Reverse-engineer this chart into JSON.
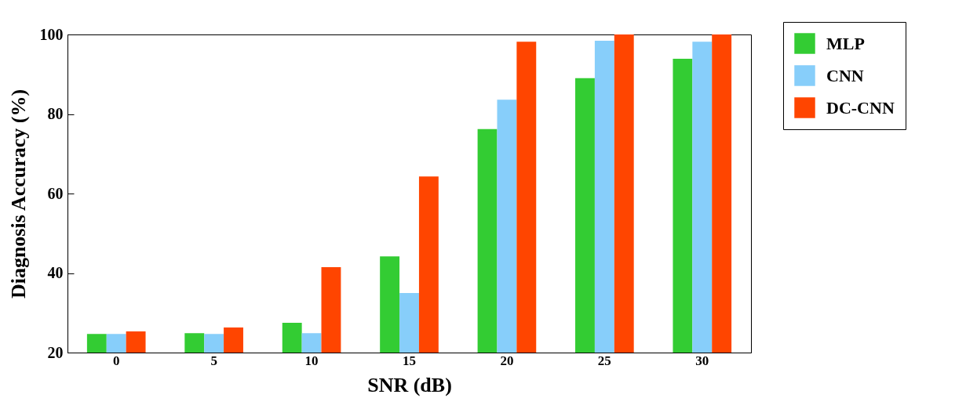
{
  "chart_data": {
    "type": "bar",
    "xlabel": "SNR (dB)",
    "ylabel": "Diagnosis Accuracy (%)",
    "categories": [
      "0",
      "5",
      "10",
      "15",
      "20",
      "25",
      "30"
    ],
    "series": [
      {
        "name": "MLP",
        "color": "#33cc33",
        "values": [
          24.7,
          24.9,
          27.5,
          44.2,
          76.2,
          89.0,
          93.9
        ]
      },
      {
        "name": "CNN",
        "color": "#87cefa",
        "values": [
          24.7,
          24.7,
          24.9,
          35.0,
          83.6,
          98.4,
          98.2
        ]
      },
      {
        "name": "DC-CNN",
        "color": "#ff4500",
        "values": [
          25.3,
          26.3,
          41.5,
          64.3,
          98.2,
          100,
          100
        ]
      }
    ],
    "ylim": [
      20,
      100
    ],
    "yticks": [
      20,
      40,
      60,
      80,
      100
    ],
    "grid": false,
    "legend": "top right"
  }
}
